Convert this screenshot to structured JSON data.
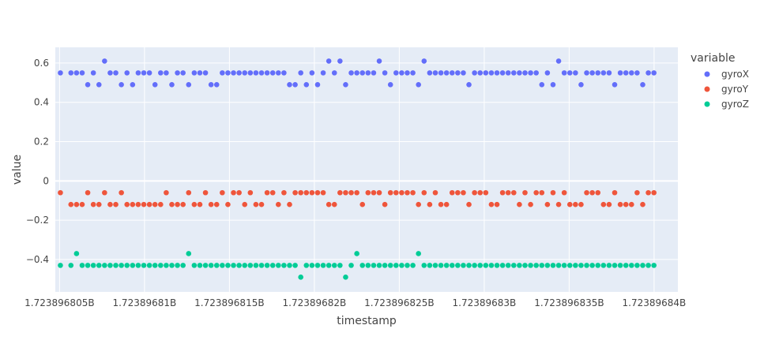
{
  "chart_data": {
    "type": "scatter",
    "xlabel": "timestamp",
    "ylabel": "value",
    "xlim": [
      1723896804.75,
      1723896841.4
    ],
    "ylim": [
      -0.565,
      0.68
    ],
    "x_ticks": [
      1723896805,
      1723896810,
      1723896815,
      1723896820,
      1723896825,
      1723896830,
      1723896835,
      1723896840
    ],
    "x_tick_labels": [
      "1.723896805B",
      "1.72389681B",
      "1.723896815B",
      "1.72389682B",
      "1.723896825B",
      "1.72389683B",
      "1.723896835B",
      "1.72389684B"
    ],
    "y_ticks": [
      -0.4,
      -0.2,
      0,
      0.2,
      0.4,
      0.6
    ],
    "y_tick_labels": [
      "−0.4",
      "−0.2",
      "0",
      "0.2",
      "0.4",
      "0.6"
    ],
    "grid": true,
    "legend": {
      "title": "variable",
      "placement": "right"
    },
    "x": [
      1723896805.05,
      1723896805.67,
      1723896806.0,
      1723896806.33,
      1723896806.66,
      1723896806.99,
      1723896807.32,
      1723896807.65,
      1723896807.98,
      1723896808.31,
      1723896808.64,
      1723896808.97,
      1723896809.3,
      1723896809.63,
      1723896809.96,
      1723896810.29,
      1723896810.62,
      1723896810.95,
      1723896811.28,
      1723896811.61,
      1723896811.94,
      1723896812.27,
      1723896812.6,
      1723896812.93,
      1723896813.26,
      1723896813.59,
      1723896813.92,
      1723896814.25,
      1723896814.58,
      1723896814.91,
      1723896815.24,
      1723896815.57,
      1723896815.9,
      1723896816.23,
      1723896816.56,
      1723896816.89,
      1723896817.22,
      1723896817.55,
      1723896817.88,
      1723896818.21,
      1723896818.54,
      1723896818.87,
      1723896819.2,
      1723896819.53,
      1723896819.86,
      1723896820.19,
      1723896820.52,
      1723896820.85,
      1723896821.18,
      1723896821.51,
      1723896821.84,
      1723896822.17,
      1723896822.5,
      1723896822.83,
      1723896823.16,
      1723896823.49,
      1723896823.82,
      1723896824.15,
      1723896824.48,
      1723896824.81,
      1723896825.14,
      1723896825.47,
      1723896825.8,
      1723896826.13,
      1723896826.46,
      1723896826.79,
      1723896827.12,
      1723896827.45,
      1723896827.78,
      1723896828.11,
      1723896828.44,
      1723896828.77,
      1723896829.1,
      1723896829.43,
      1723896829.76,
      1723896830.09,
      1723896830.42,
      1723896830.75,
      1723896831.08,
      1723896831.41,
      1723896831.74,
      1723896832.07,
      1723896832.4,
      1723896832.73,
      1723896833.06,
      1723896833.39,
      1723896833.72,
      1723896834.05,
      1723896834.38,
      1723896834.71,
      1723896835.04,
      1723896835.37,
      1723896835.7,
      1723896836.03,
      1723896836.36,
      1723896836.69,
      1723896837.02,
      1723896837.35,
      1723896837.68,
      1723896838.01,
      1723896838.34,
      1723896838.67,
      1723896839.0,
      1723896839.33,
      1723896839.66,
      1723896839.99
    ],
    "series": [
      {
        "name": "gyroX",
        "color": "#636efa",
        "values": [
          0.55,
          0.55,
          0.55,
          0.55,
          0.49,
          0.55,
          0.49,
          0.61,
          0.55,
          0.55,
          0.49,
          0.55,
          0.49,
          0.55,
          0.55,
          0.55,
          0.49,
          0.55,
          0.55,
          0.49,
          0.55,
          0.55,
          0.49,
          0.55,
          0.55,
          0.55,
          0.49,
          0.49,
          0.55,
          0.55,
          0.55,
          0.55,
          0.55,
          0.55,
          0.55,
          0.55,
          0.55,
          0.55,
          0.55,
          0.55,
          0.49,
          0.49,
          0.55,
          0.49,
          0.55,
          0.49,
          0.55,
          0.61,
          0.55,
          0.61,
          0.49,
          0.55,
          0.55,
          0.55,
          0.55,
          0.55,
          0.61,
          0.55,
          0.49,
          0.55,
          0.55,
          0.55,
          0.55,
          0.49,
          0.61,
          0.55,
          0.55,
          0.55,
          0.55,
          0.55,
          0.55,
          0.55,
          0.49,
          0.55,
          0.55,
          0.55,
          0.55,
          0.55,
          0.55,
          0.55,
          0.55,
          0.55,
          0.55,
          0.55,
          0.55,
          0.49,
          0.55,
          0.49,
          0.61,
          0.55,
          0.55,
          0.55,
          0.49,
          0.55,
          0.55,
          0.55,
          0.55,
          0.55,
          0.49,
          0.55,
          0.55,
          0.55,
          0.55,
          0.49,
          0.55,
          0.55
        ]
      },
      {
        "name": "gyroY",
        "color": "#ef553b",
        "values": [
          -0.06,
          -0.12,
          -0.12,
          -0.12,
          -0.06,
          -0.12,
          -0.12,
          -0.06,
          -0.12,
          -0.12,
          -0.06,
          -0.12,
          -0.12,
          -0.12,
          -0.12,
          -0.12,
          -0.12,
          -0.12,
          -0.06,
          -0.12,
          -0.12,
          -0.12,
          -0.06,
          -0.12,
          -0.12,
          -0.06,
          -0.12,
          -0.12,
          -0.06,
          -0.12,
          -0.06,
          -0.06,
          -0.12,
          -0.06,
          -0.12,
          -0.12,
          -0.06,
          -0.06,
          -0.12,
          -0.06,
          -0.12,
          -0.06,
          -0.06,
          -0.06,
          -0.06,
          -0.06,
          -0.06,
          -0.12,
          -0.12,
          -0.06,
          -0.06,
          -0.06,
          -0.06,
          -0.12,
          -0.06,
          -0.06,
          -0.06,
          -0.12,
          -0.06,
          -0.06,
          -0.06,
          -0.06,
          -0.06,
          -0.12,
          -0.06,
          -0.12,
          -0.06,
          -0.12,
          -0.12,
          -0.06,
          -0.06,
          -0.06,
          -0.12,
          -0.06,
          -0.06,
          -0.06,
          -0.12,
          -0.12,
          -0.06,
          -0.06,
          -0.06,
          -0.12,
          -0.06,
          -0.12,
          -0.06,
          -0.06,
          -0.12,
          -0.06,
          -0.12,
          -0.06,
          -0.12,
          -0.12,
          -0.12,
          -0.06,
          -0.06,
          -0.06,
          -0.12,
          -0.12,
          -0.06,
          -0.12,
          -0.12,
          -0.12,
          -0.06,
          -0.12,
          -0.06,
          -0.06
        ]
      },
      {
        "name": "gyroZ",
        "color": "#00cc96",
        "values": [
          -0.43,
          -0.43,
          -0.37,
          -0.43,
          -0.43,
          -0.43,
          -0.43,
          -0.43,
          -0.43,
          -0.43,
          -0.43,
          -0.43,
          -0.43,
          -0.43,
          -0.43,
          -0.43,
          -0.43,
          -0.43,
          -0.43,
          -0.43,
          -0.43,
          -0.43,
          -0.37,
          -0.43,
          -0.43,
          -0.43,
          -0.43,
          -0.43,
          -0.43,
          -0.43,
          -0.43,
          -0.43,
          -0.43,
          -0.43,
          -0.43,
          -0.43,
          -0.43,
          -0.43,
          -0.43,
          -0.43,
          -0.43,
          -0.43,
          -0.49,
          -0.43,
          -0.43,
          -0.43,
          -0.43,
          -0.43,
          -0.43,
          -0.43,
          -0.49,
          -0.43,
          -0.37,
          -0.43,
          -0.43,
          -0.43,
          -0.43,
          -0.43,
          -0.43,
          -0.43,
          -0.43,
          -0.43,
          -0.43,
          -0.37,
          -0.43,
          -0.43,
          -0.43,
          -0.43,
          -0.43,
          -0.43,
          -0.43,
          -0.43,
          -0.43,
          -0.43,
          -0.43,
          -0.43,
          -0.43,
          -0.43,
          -0.43,
          -0.43,
          -0.43,
          -0.43,
          -0.43,
          -0.43,
          -0.43,
          -0.43,
          -0.43,
          -0.43,
          -0.43,
          -0.43,
          -0.43,
          -0.43,
          -0.43,
          -0.43,
          -0.43,
          -0.43,
          -0.43,
          -0.43,
          -0.43,
          -0.43,
          -0.43,
          -0.43,
          -0.43,
          -0.43,
          -0.43,
          -0.43
        ]
      }
    ]
  }
}
